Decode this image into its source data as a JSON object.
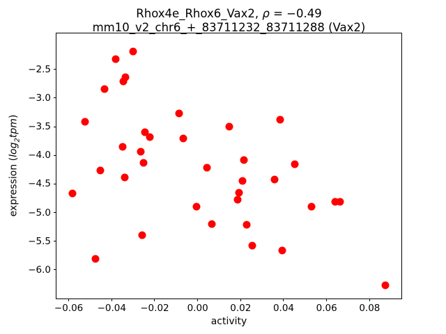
{
  "title": {
    "line1_pre": "Rhox4e_Rhox6_Vax2, ",
    "line1_rho": "ρ",
    "line1_post": " = −0.49",
    "line2": "mm10_v2_chr6_+_83711232_83711288 (Vax2)"
  },
  "axes": {
    "xlabel": "activity",
    "ylabel_prefix": "expression (",
    "ylabel_math_main": "log",
    "ylabel_math_sub": "2",
    "ylabel_math_tail": "tpm",
    "ylabel_suffix": ")"
  },
  "chart_data": {
    "type": "scatter",
    "title": "Rhox4e_Rhox6_Vax2, ρ = −0.49",
    "subtitle": "mm10_v2_chr6_+_83711232_83711288 (Vax2)",
    "xlabel": "activity",
    "ylabel": "expression (log2tpm)",
    "correlation_rho": -0.49,
    "marker_color": "#ff0000",
    "marker_diameter_px": 11,
    "xlim": [
      -0.0657,
      0.0948
    ],
    "ylim": [
      -6.5,
      -1.87
    ],
    "xticks": [
      -0.06,
      -0.04,
      -0.02,
      0.0,
      0.02,
      0.04,
      0.06,
      0.08
    ],
    "yticks": [
      -2.5,
      -3.0,
      -3.5,
      -4.0,
      -4.5,
      -5.0,
      -5.5,
      -6.0
    ],
    "grid": false,
    "legend": null,
    "points": [
      [
        -0.0301,
        -2.19
      ],
      [
        -0.0381,
        -2.32
      ],
      [
        -0.0337,
        -2.63
      ],
      [
        -0.0347,
        -2.71
      ],
      [
        -0.0433,
        -2.84
      ],
      [
        -0.0086,
        -3.27
      ],
      [
        -0.0525,
        -3.41
      ],
      [
        0.0146,
        -3.5
      ],
      [
        0.0385,
        -3.38
      ],
      [
        -0.0245,
        -3.59
      ],
      [
        -0.0222,
        -3.68
      ],
      [
        -0.0066,
        -3.7
      ],
      [
        -0.0348,
        -3.85
      ],
      [
        -0.0265,
        -3.94
      ],
      [
        -0.0252,
        -4.13
      ],
      [
        0.0214,
        -4.08
      ],
      [
        0.0451,
        -4.15
      ],
      [
        -0.0453,
        -4.26
      ],
      [
        -0.034,
        -4.38
      ],
      [
        -0.0583,
        -4.66
      ],
      [
        0.0042,
        -4.21
      ],
      [
        -0.0006,
        -4.9
      ],
      [
        0.0066,
        -5.2
      ],
      [
        -0.0258,
        -5.4
      ],
      [
        -0.0474,
        -5.81
      ],
      [
        0.0358,
        -4.42
      ],
      [
        0.021,
        -4.45
      ],
      [
        0.0194,
        -4.65
      ],
      [
        0.0185,
        -4.77
      ],
      [
        0.064,
        -4.81
      ],
      [
        0.0663,
        -4.81
      ],
      [
        0.0529,
        -4.9
      ],
      [
        0.0228,
        -5.21
      ],
      [
        0.0255,
        -5.58
      ],
      [
        0.0394,
        -5.66
      ],
      [
        0.0873,
        -6.27
      ]
    ]
  }
}
